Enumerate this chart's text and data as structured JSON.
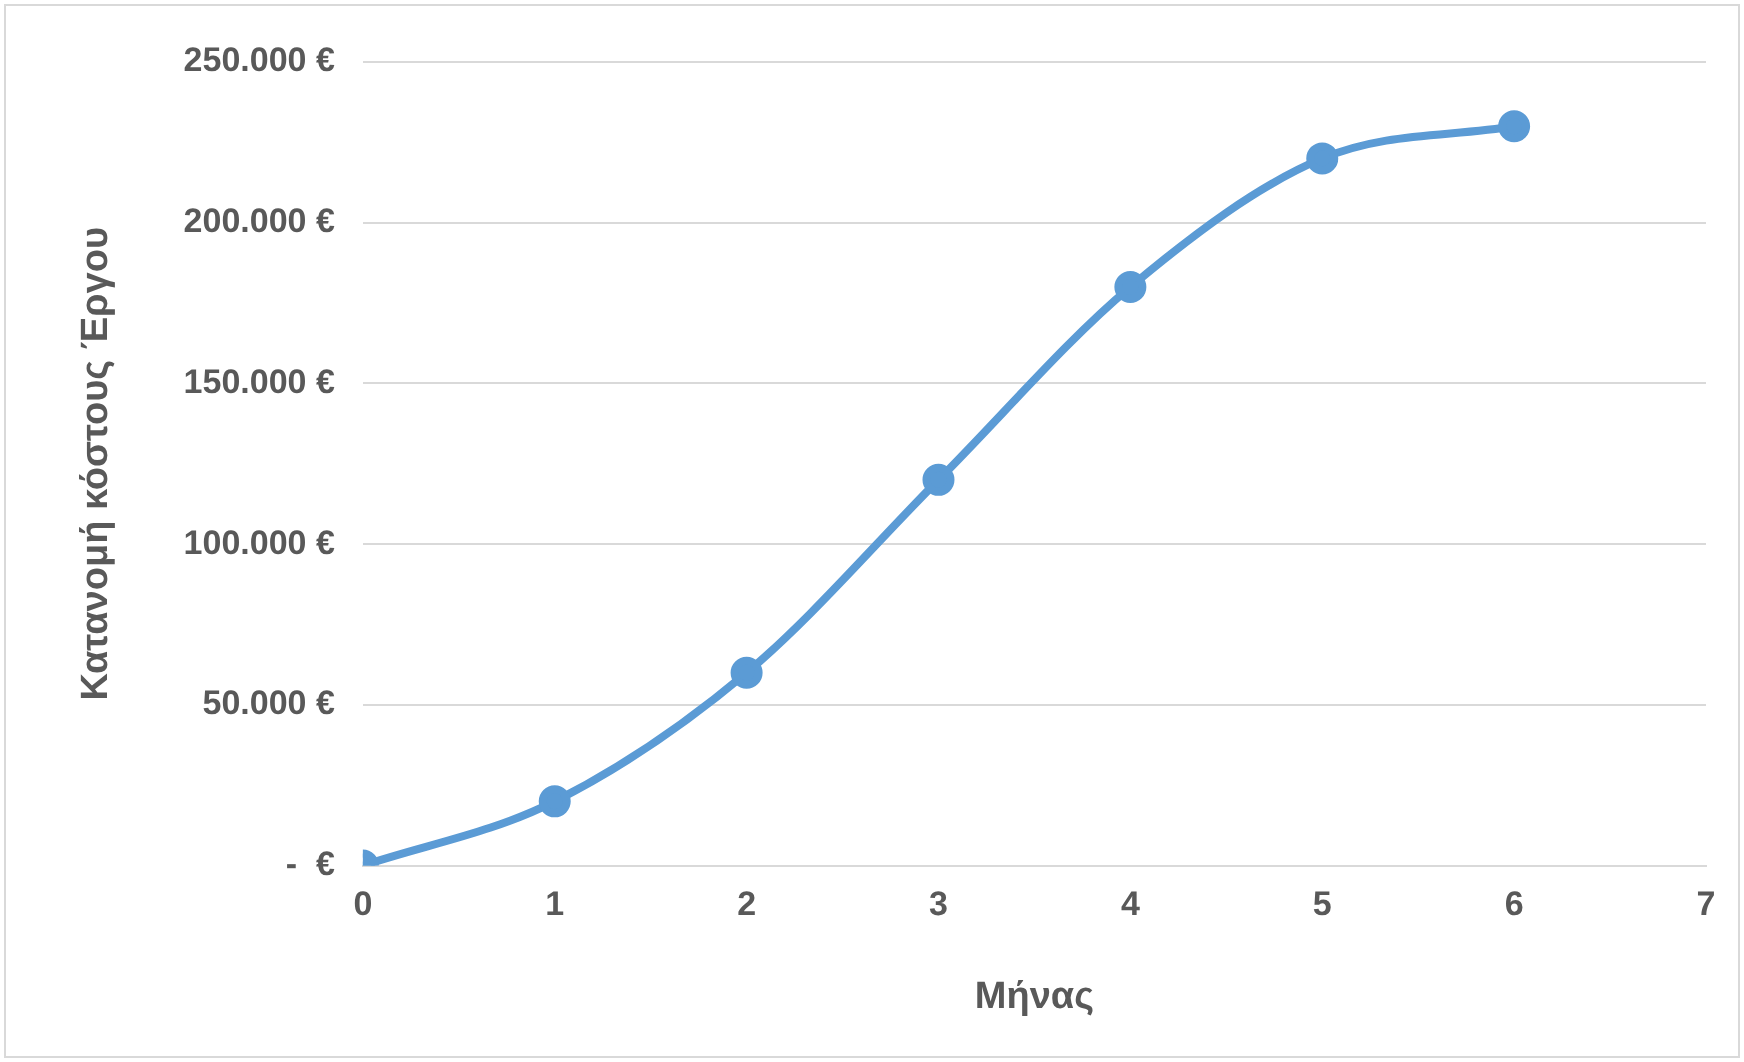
{
  "chart_data": {
    "type": "line",
    "xlabel": "Μήνας",
    "ylabel": "Κατανομή κόστους Έργου",
    "x": [
      0,
      1,
      2,
      3,
      4,
      5,
      6
    ],
    "series": [
      {
        "color": "#5b9bd5",
        "values": [
          0,
          20000,
          60000,
          120000,
          180000,
          220000,
          230000
        ]
      }
    ],
    "xlim": [
      0,
      7
    ],
    "xticks": [
      0,
      1,
      2,
      3,
      4,
      5,
      6,
      7
    ],
    "ylim": [
      0,
      250000
    ],
    "yticks": [
      {
        "value": 0,
        "label": "-  €"
      },
      {
        "value": 50000,
        "label": "50.000 €"
      },
      {
        "value": 100000,
        "label": "100.000 €"
      },
      {
        "value": 150000,
        "label": "150.000 €"
      },
      {
        "value": 200000,
        "label": "200.000 €"
      },
      {
        "value": 250000,
        "label": "250.000 €"
      }
    ],
    "grid": "y",
    "legend": false,
    "marker": "circle",
    "line_style": "solid"
  }
}
